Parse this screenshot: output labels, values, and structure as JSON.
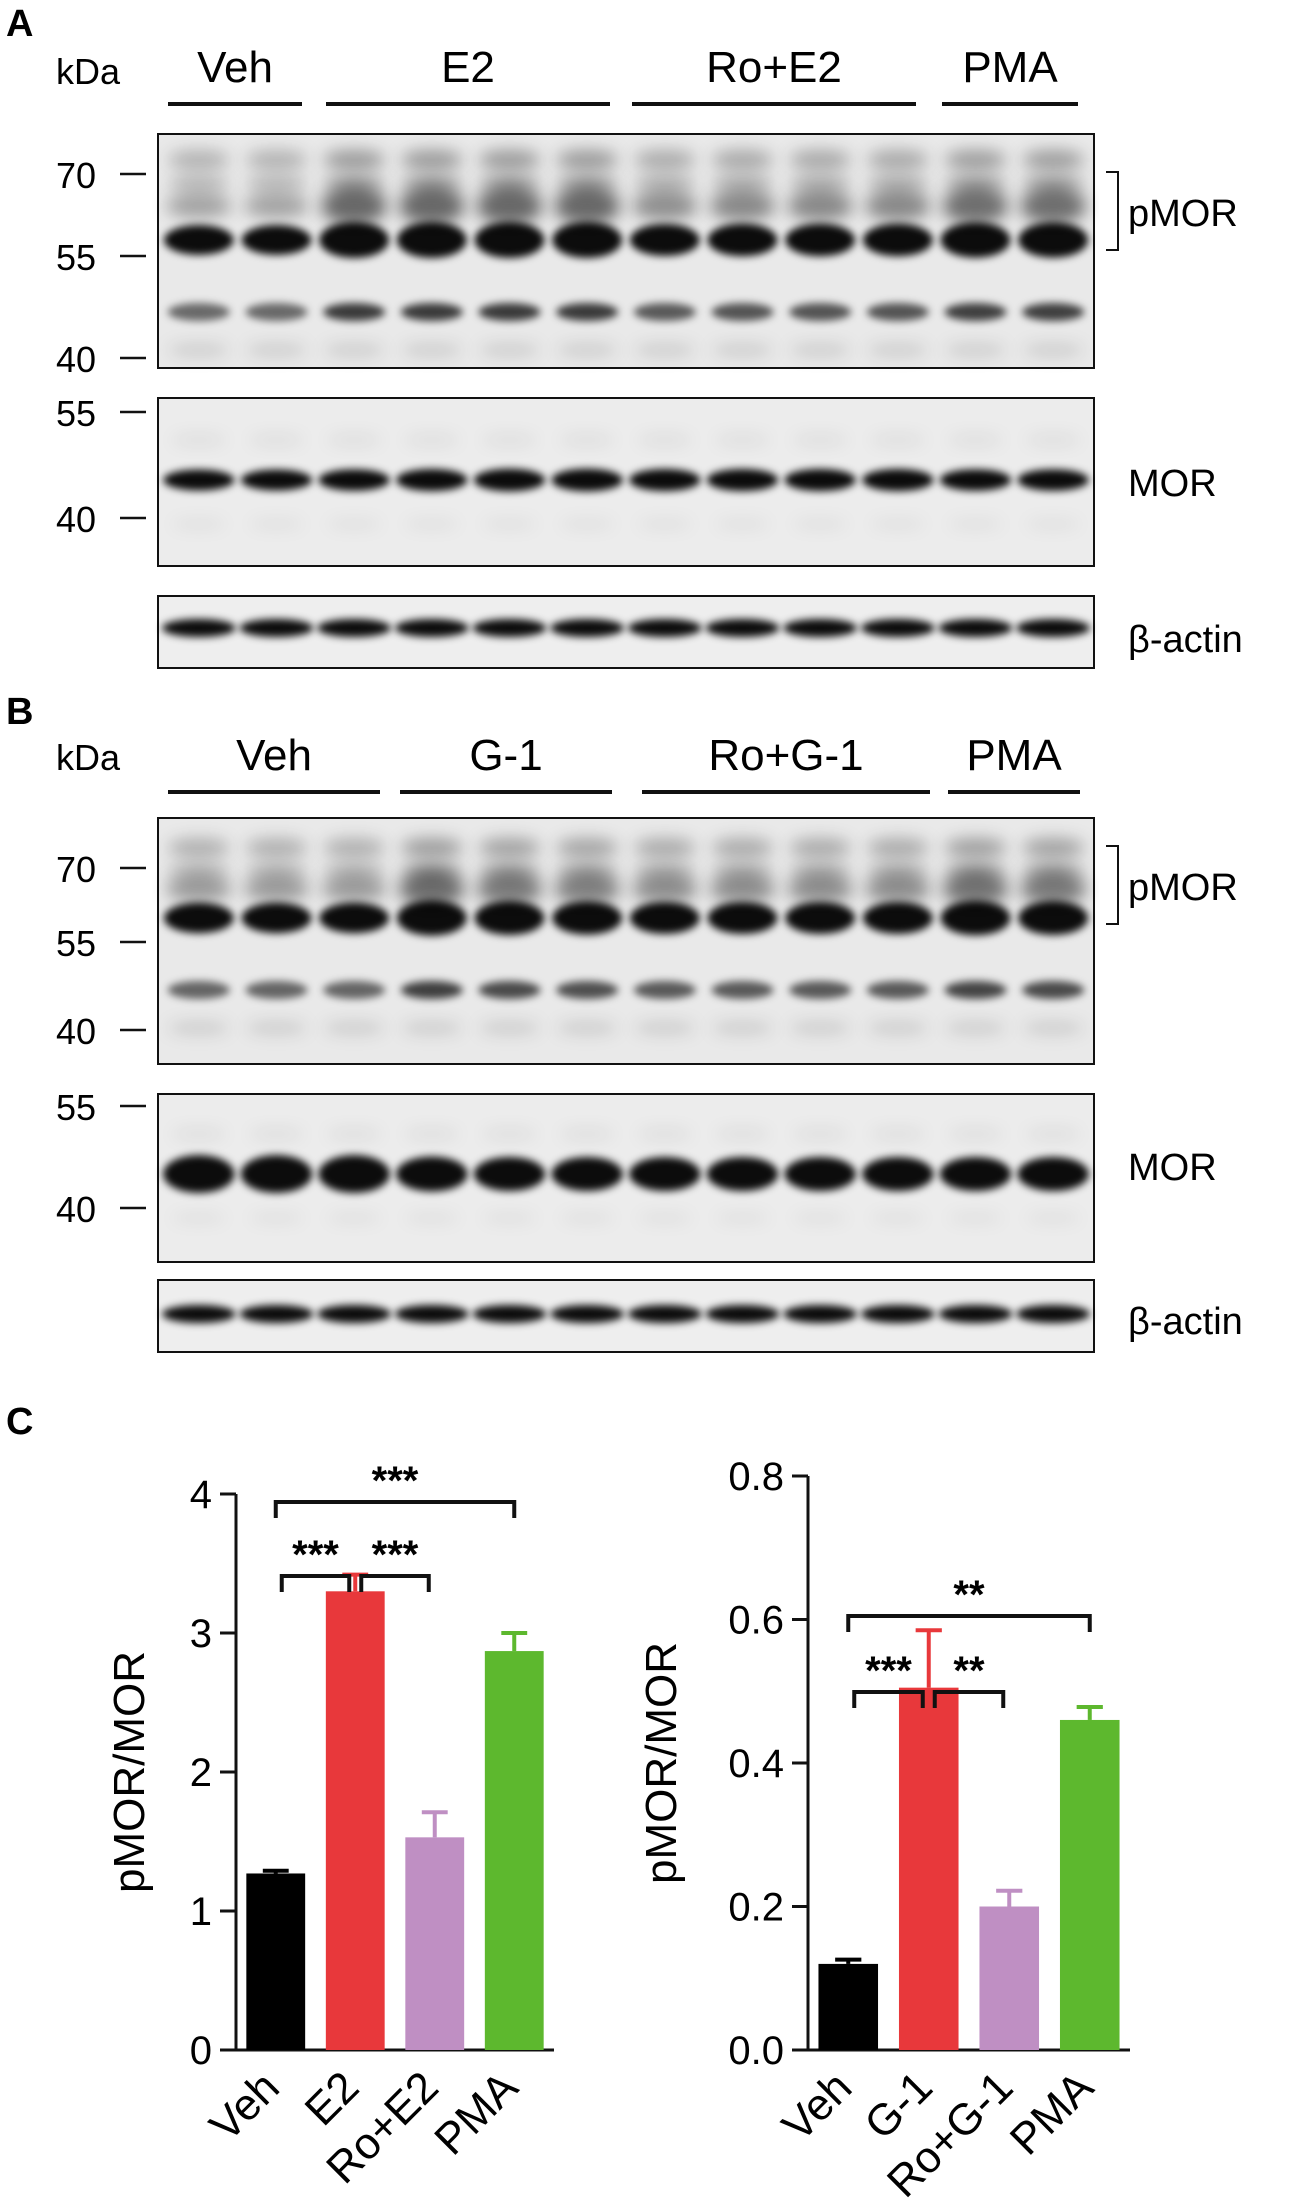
{
  "panel_a": {
    "letter": "A",
    "kda_label": "kDa",
    "groups": [
      "Veh",
      "E2",
      "Ro+E2",
      "PMA"
    ],
    "lane_counts": [
      2,
      4,
      4,
      2
    ],
    "blots": [
      {
        "label": "pMOR",
        "markers": [
          "70",
          "55",
          "40"
        ],
        "bracket": true
      },
      {
        "label": "MOR",
        "markers": [
          "55",
          "40"
        ],
        "bracket": false
      },
      {
        "label": "β-actin",
        "markers": [],
        "bracket": false
      }
    ]
  },
  "panel_b": {
    "letter": "B",
    "kda_label": "kDa",
    "groups": [
      "Veh",
      "G-1",
      "Ro+G-1",
      "PMA"
    ],
    "lane_counts": [
      3,
      3,
      4,
      2
    ],
    "blots": [
      {
        "label": "pMOR",
        "markers": [
          "70",
          "55",
          "40"
        ],
        "bracket": true
      },
      {
        "label": "MOR",
        "markers": [
          "55",
          "40"
        ],
        "bracket": false
      },
      {
        "label": "β-actin",
        "markers": [],
        "bracket": false
      }
    ]
  },
  "panel_c": {
    "letter": "C",
    "colors": {
      "Veh": "#000000",
      "treatment": "#e8383b",
      "ro": "#bf8fc3",
      "pma": "#5db82e"
    }
  },
  "chart_data": [
    {
      "type": "bar",
      "categories": [
        "Veh",
        "E2",
        "Ro+E2",
        "PMA"
      ],
      "values": [
        1.27,
        3.3,
        1.53,
        2.87
      ],
      "errors": [
        0.02,
        0.12,
        0.18,
        0.13
      ],
      "colors": [
        "#000000",
        "#e8383b",
        "#bf8fc3",
        "#5db82e"
      ],
      "ylabel": "pMOR/MOR",
      "ylim": [
        0,
        4
      ],
      "yticks": [
        "0",
        "1",
        "2",
        "3",
        "4"
      ],
      "significance": [
        {
          "from": 0,
          "to": 1,
          "label": "***"
        },
        {
          "from": 1,
          "to": 2,
          "label": "***"
        },
        {
          "from": 0,
          "to": 3,
          "label": "***"
        }
      ]
    },
    {
      "type": "bar",
      "categories": [
        "Veh",
        "G-1",
        "Ro+G-1",
        "PMA"
      ],
      "values": [
        0.12,
        0.505,
        0.2,
        0.46
      ],
      "errors": [
        0.006,
        0.08,
        0.022,
        0.018
      ],
      "colors": [
        "#000000",
        "#e8383b",
        "#bf8fc3",
        "#5db82e"
      ],
      "ylabel": "pMOR/MOR",
      "ylim": [
        0,
        0.8
      ],
      "yticks": [
        "0.0",
        "0.2",
        "0.4",
        "0.6",
        "0.8"
      ],
      "significance": [
        {
          "from": 0,
          "to": 1,
          "label": "***"
        },
        {
          "from": 1,
          "to": 2,
          "label": "**"
        },
        {
          "from": 0,
          "to": 3,
          "label": "**"
        }
      ]
    }
  ]
}
